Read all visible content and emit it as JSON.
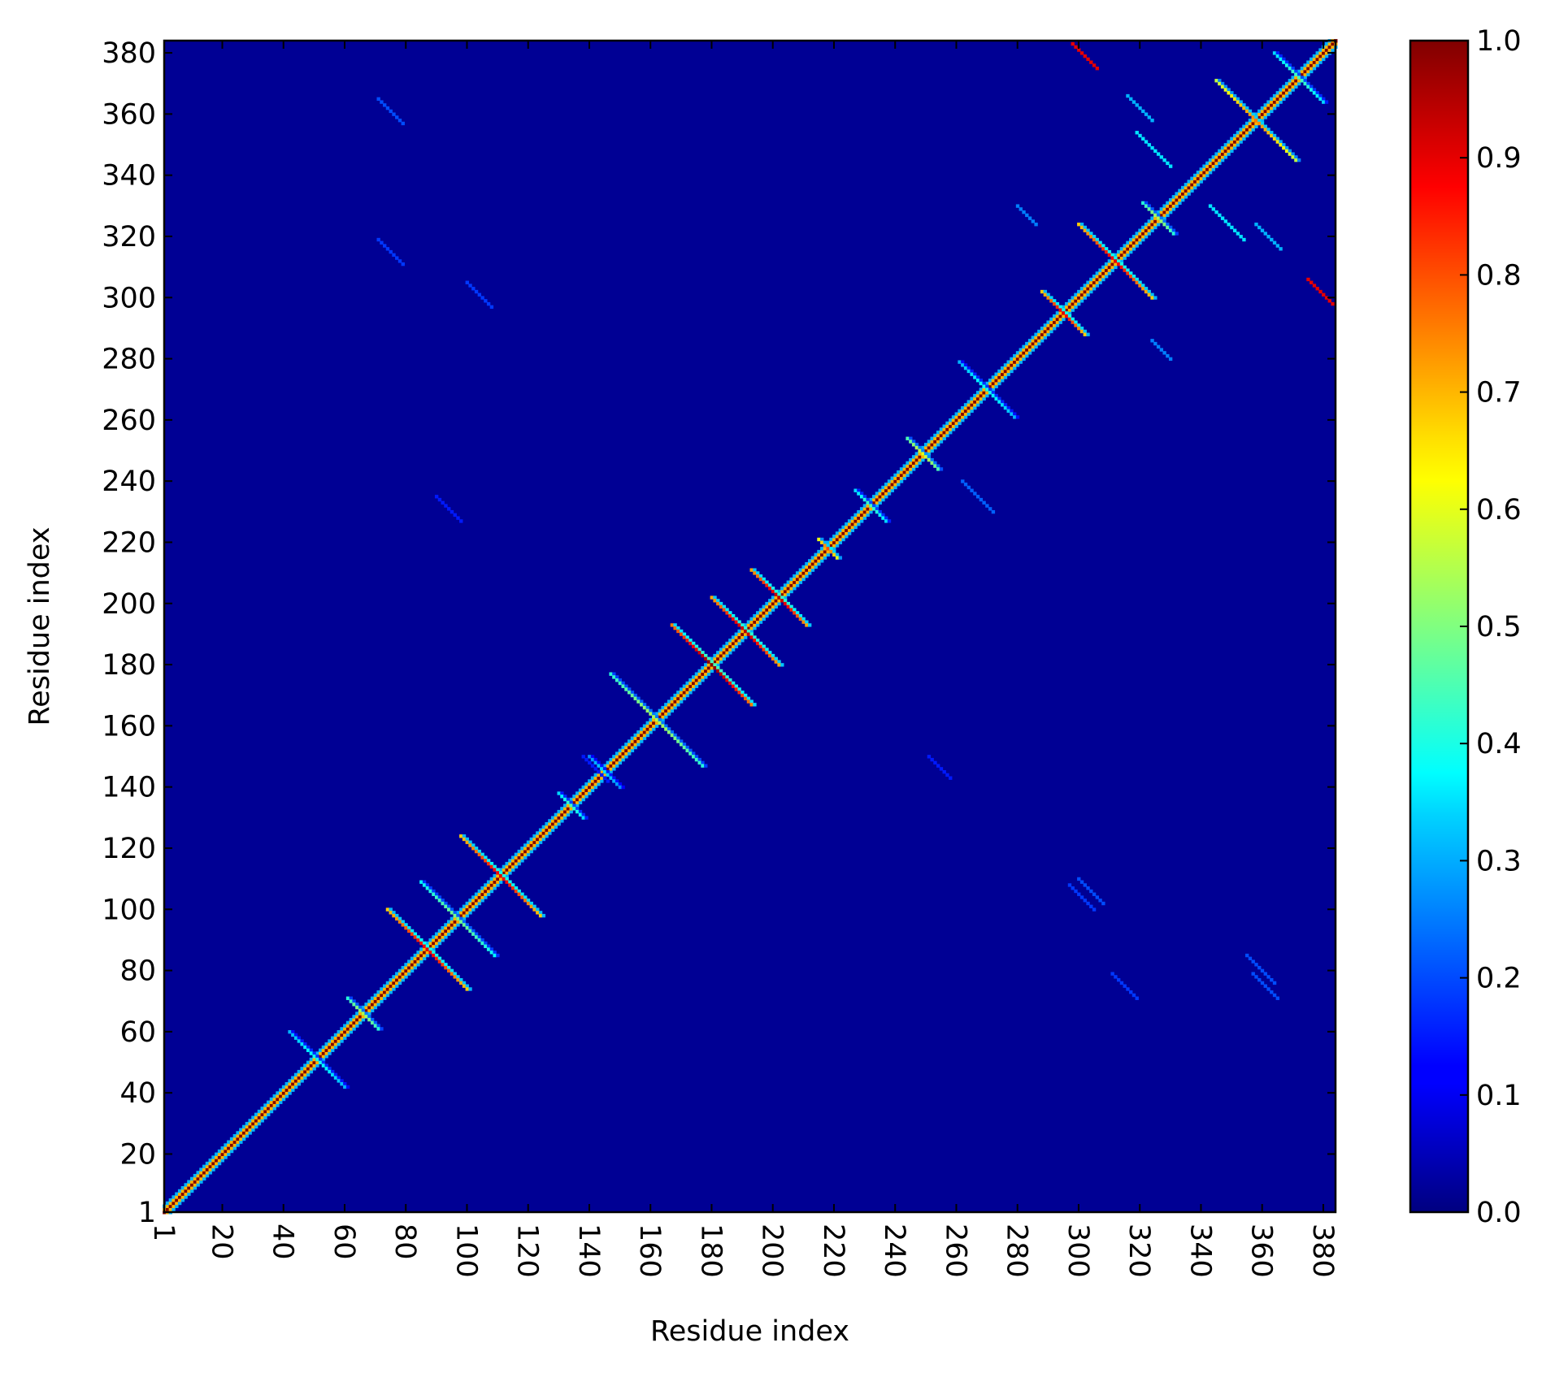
{
  "chart_data": {
    "type": "heatmap",
    "title": "",
    "xlabel": "Residue index",
    "ylabel": "Residue index",
    "n_residues": 384,
    "xlim": [
      1,
      384
    ],
    "ylim": [
      1,
      384
    ],
    "xticks": [
      1,
      20,
      40,
      60,
      80,
      100,
      120,
      140,
      160,
      180,
      200,
      220,
      240,
      260,
      280,
      300,
      320,
      340,
      360,
      380
    ],
    "yticks": [
      1,
      20,
      40,
      60,
      80,
      100,
      120,
      140,
      160,
      180,
      200,
      220,
      240,
      260,
      280,
      300,
      320,
      340,
      360,
      380
    ],
    "xtick_labels": [
      "1",
      "20",
      "40",
      "60",
      "80",
      "100",
      "120",
      "140",
      "160",
      "180",
      "200",
      "220",
      "240",
      "260",
      "280",
      "300",
      "320",
      "340",
      "360",
      "380"
    ],
    "ytick_labels": [
      "1",
      "20",
      "40",
      "60",
      "80",
      "100",
      "120",
      "140",
      "160",
      "180",
      "200",
      "220",
      "240",
      "260",
      "280",
      "300",
      "320",
      "340",
      "360",
      "380"
    ],
    "background_value": 0.02,
    "diagonal_value": 1.0,
    "colormap": "jet",
    "colorbar": {
      "range": [
        0.0,
        1.0
      ],
      "ticks": [
        0.0,
        0.1,
        0.2,
        0.3,
        0.4,
        0.5,
        0.6,
        0.7,
        0.8,
        0.9,
        1.0
      ],
      "tick_labels": [
        "0.0",
        "0.1",
        "0.2",
        "0.3",
        "0.4",
        "0.5",
        "0.6",
        "0.7",
        "0.8",
        "0.9",
        "1.0"
      ]
    },
    "antidiagonal_features": [
      {
        "center": [
          51,
          51
        ],
        "half_length": 9,
        "value": 0.4
      },
      {
        "center": [
          66,
          66
        ],
        "half_length": 5,
        "value": 0.55
      },
      {
        "center": [
          87,
          87
        ],
        "half_length": 13,
        "value": 0.9
      },
      {
        "center": [
          97,
          97
        ],
        "half_length": 12,
        "value": 0.5
      },
      {
        "center": [
          111,
          111
        ],
        "half_length": 13,
        "value": 0.9
      },
      {
        "center": [
          134,
          134
        ],
        "half_length": 4,
        "value": 0.45
      },
      {
        "center": [
          145,
          145
        ],
        "half_length": 5,
        "value": 0.35
      },
      {
        "center": [
          162,
          162
        ],
        "half_length": 15,
        "value": 0.55
      },
      {
        "center": [
          180,
          180
        ],
        "half_length": 13,
        "value": 1.0
      },
      {
        "center": [
          191,
          191
        ],
        "half_length": 11,
        "value": 0.95
      },
      {
        "center": [
          202,
          202
        ],
        "half_length": 9,
        "value": 0.95
      },
      {
        "center": [
          218,
          218
        ],
        "half_length": 3,
        "value": 0.8
      },
      {
        "center": [
          232,
          232
        ],
        "half_length": 5,
        "value": 0.45
      },
      {
        "center": [
          249,
          249
        ],
        "half_length": 5,
        "value": 0.6
      },
      {
        "center": [
          270,
          270
        ],
        "half_length": 9,
        "value": 0.4
      },
      {
        "center": [
          295,
          295
        ],
        "half_length": 7,
        "value": 0.9
      },
      {
        "center": [
          312,
          312
        ],
        "half_length": 12,
        "value": 0.9
      },
      {
        "center": [
          326,
          326
        ],
        "half_length": 5,
        "value": 0.55
      },
      {
        "center": [
          358,
          358
        ],
        "half_length": 13,
        "value": 0.75
      },
      {
        "center": [
          372,
          372
        ],
        "half_length": 8,
        "value": 0.45
      }
    ],
    "offdiagonal_features": [
      {
        "start": [
          298,
          383
        ],
        "end": [
          306,
          375
        ],
        "value": 0.9
      },
      {
        "start": [
          375,
          306
        ],
        "end": [
          383,
          298
        ],
        "value": 0.9
      },
      {
        "start": [
          343,
          330
        ],
        "end": [
          354,
          319
        ],
        "value": 0.35
      },
      {
        "start": [
          319,
          354
        ],
        "end": [
          330,
          343
        ],
        "value": 0.35
      },
      {
        "start": [
          316,
          366
        ],
        "end": [
          324,
          358
        ],
        "value": 0.3
      },
      {
        "start": [
          358,
          324
        ],
        "end": [
          366,
          316
        ],
        "value": 0.3
      },
      {
        "start": [
          280,
          330
        ],
        "end": [
          286,
          324
        ],
        "value": 0.25
      },
      {
        "start": [
          324,
          286
        ],
        "end": [
          330,
          280
        ],
        "value": 0.25
      },
      {
        "start": [
          71,
          365
        ],
        "end": [
          79,
          357
        ],
        "value": 0.2
      },
      {
        "start": [
          357,
          79
        ],
        "end": [
          365,
          71
        ],
        "value": 0.2
      },
      {
        "start": [
          71,
          319
        ],
        "end": [
          79,
          311
        ],
        "value": 0.18
      },
      {
        "start": [
          311,
          79
        ],
        "end": [
          319,
          71
        ],
        "value": 0.18
      },
      {
        "start": [
          100,
          305
        ],
        "end": [
          108,
          297
        ],
        "value": 0.18
      },
      {
        "start": [
          297,
          108
        ],
        "end": [
          305,
          100
        ],
        "value": 0.18
      },
      {
        "start": [
          300,
          110
        ],
        "end": [
          308,
          102
        ],
        "value": 0.2
      },
      {
        "start": [
          355,
          85
        ],
        "end": [
          364,
          76
        ],
        "value": 0.2
      },
      {
        "start": [
          90,
          235
        ],
        "end": [
          98,
          227
        ],
        "value": 0.15
      },
      {
        "start": [
          262,
          240
        ],
        "end": [
          272,
          230
        ],
        "value": 0.22
      },
      {
        "start": [
          251,
          150
        ],
        "end": [
          258,
          143
        ],
        "value": 0.15
      },
      {
        "start": [
          138,
          150
        ],
        "end": [
          146,
          142
        ],
        "value": 0.15
      }
    ]
  }
}
